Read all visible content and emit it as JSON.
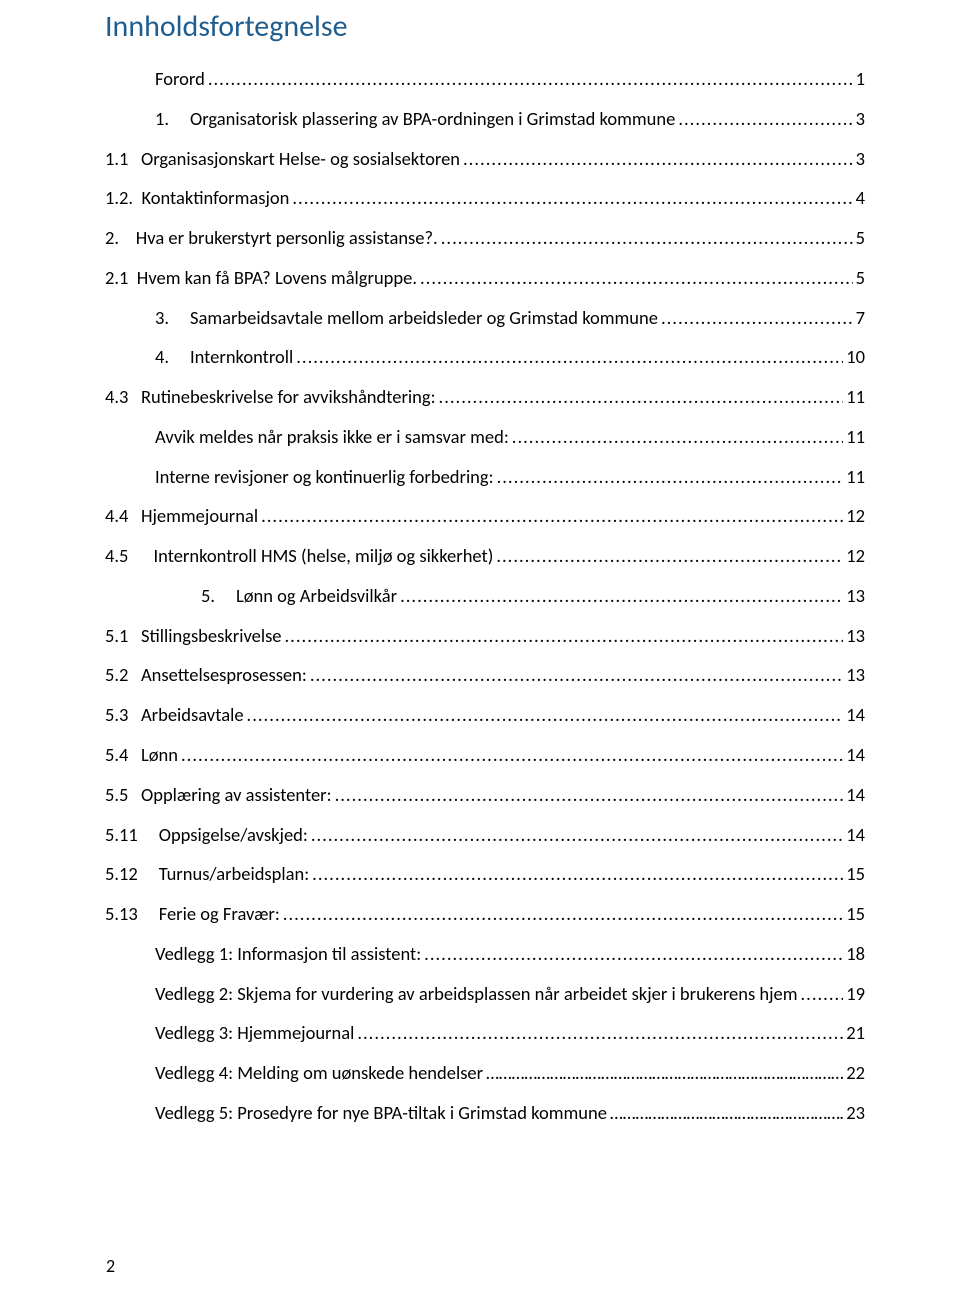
{
  "title": {
    "text": "Innholdsfortegnelse",
    "color": "#1f5d8f",
    "fontsize": 30
  },
  "leader_char": ".",
  "toc": [
    {
      "indent": 1,
      "label": "Forord",
      "page": "1"
    },
    {
      "indent": 1,
      "label": "1.     Organisatorisk plassering av BPA-ordningen i Grimstad kommune",
      "page": "3"
    },
    {
      "indent": 0,
      "label": "1.1   Organisasjonskart Helse- og sosialsektoren",
      "page": "3"
    },
    {
      "indent": 0,
      "label": "1.2.  Kontaktinformasjon",
      "page": "4"
    },
    {
      "indent": 0,
      "label": "2.    Hva er brukerstyrt personlig assistanse?.",
      "page": "5"
    },
    {
      "indent": 0,
      "label": "2.1  Hvem kan få BPA? Lovens målgruppe.",
      "page": "5"
    },
    {
      "indent": 1,
      "label": "3.     Samarbeidsavtale mellom arbeidsleder og Grimstad kommune",
      "page": "7"
    },
    {
      "indent": 1,
      "label": "4.     Internkontroll",
      "page": "10"
    },
    {
      "indent": 0,
      "label": "4.3   Rutinebeskrivelse for avvikshåndtering:",
      "page": "11"
    },
    {
      "indent": 1,
      "label": "Avvik meldes når praksis ikke er i samsvar med:",
      "page": "11"
    },
    {
      "indent": 1,
      "label": "Interne revisjoner og kontinuerlig forbedring:",
      "page": "11"
    },
    {
      "indent": 0,
      "label": "4.4   Hjemmejournal",
      "page": "12"
    },
    {
      "indent": 0,
      "label": "4.5      Internkontroll HMS (helse, miljø og sikkerhet)",
      "page": "12"
    },
    {
      "indent": 2,
      "label": "5.     Lønn og Arbeidsvilkår",
      "page": "13"
    },
    {
      "indent": 0,
      "label": "5.1   Stillingsbeskrivelse",
      "page": "13"
    },
    {
      "indent": 0,
      "label": "5.2   Ansettelsesprosessen:",
      "page": "13"
    },
    {
      "indent": 0,
      "label": "5.3   Arbeidsavtale",
      "page": "14"
    },
    {
      "indent": 0,
      "label": "5.4   Lønn",
      "page": "14"
    },
    {
      "indent": 0,
      "label": "5.5   Opplæring av assistenter:",
      "page": "14"
    },
    {
      "indent": 0,
      "label": "5.11     Oppsigelse/avskjed:",
      "page": "14"
    },
    {
      "indent": 0,
      "label": "5.12     Turnus/arbeidsplan:",
      "page": "15"
    },
    {
      "indent": 0,
      "label": "5.13     Ferie og Fravær:",
      "page": "15"
    },
    {
      "indent": 1,
      "label": "Vedlegg 1: Informasjon til assistent:",
      "page": "18"
    },
    {
      "indent": 1,
      "label": "Vedlegg 2: Skjema for vurdering av arbeidsplassen når arbeidet skjer i brukerens hjem",
      "page": "19"
    },
    {
      "indent": 1,
      "label": "Vedlegg 3: Hjemmejournal",
      "page": "21"
    },
    {
      "indent": 1,
      "label": "Vedlegg 4: Melding om uønskede hendelser",
      "page": "22",
      "leader": "ellipsis"
    },
    {
      "indent": 1,
      "label": "Vedlegg 5: Prosedyre for nye BPA-tiltak i Grimstad kommune",
      "page": "23",
      "leader": "ellipsis"
    }
  ],
  "page_number": "2",
  "colors": {
    "text": "#000000",
    "title": "#1f5d8f",
    "background": "#ffffff"
  },
  "typography": {
    "body_fontsize": 18.5,
    "title_fontsize": 30,
    "line_height": 2.15,
    "font_family": "Calibri"
  }
}
